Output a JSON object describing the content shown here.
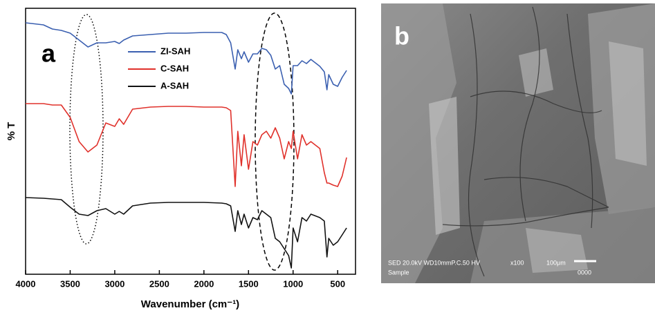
{
  "chart_data": {
    "type": "line",
    "panel_label": "a",
    "xlabel": "Wavenumber (cm⁻¹)",
    "ylabel": "% T",
    "x": [
      4000,
      3800,
      3700,
      3600,
      3500,
      3400,
      3300,
      3200,
      3100,
      3000,
      2950,
      2900,
      2800,
      2600,
      2400,
      2200,
      2000,
      1800,
      1750,
      1700,
      1650,
      1620,
      1580,
      1550,
      1500,
      1450,
      1400,
      1350,
      1300,
      1250,
      1200,
      1150,
      1100,
      1050,
      1020,
      1000,
      950,
      900,
      850,
      800,
      700,
      650,
      620,
      600,
      550,
      500,
      450,
      400
    ],
    "series": [
      {
        "name": "ZI-SAH",
        "color": "#3a5fb0",
        "values": [
          364,
          361,
          355,
          353,
          349,
          339,
          329,
          335,
          335,
          337,
          334,
          339,
          345,
          347,
          349,
          349,
          350,
          350,
          347,
          335,
          297,
          325,
          312,
          322,
          307,
          319,
          319,
          327,
          325,
          317,
          297,
          302,
          275,
          269,
          261,
          302,
          302,
          309,
          305,
          311,
          301,
          293,
          267,
          289,
          275,
          272,
          285,
          295
        ]
      },
      {
        "name": "C-SAH",
        "color": "#e0302a",
        "values": [
          247,
          247,
          245,
          245,
          227,
          192,
          177,
          187,
          219,
          214,
          225,
          217,
          239,
          242,
          243,
          243,
          242,
          242,
          241,
          237,
          127,
          207,
          157,
          202,
          152,
          192,
          187,
          202,
          207,
          197,
          212,
          197,
          167,
          192,
          182,
          207,
          167,
          202,
          187,
          192,
          182,
          147,
          132,
          132,
          129,
          127,
          142,
          169
        ]
      },
      {
        "name": "A-SAH",
        "color": "#111111",
        "values": [
          111,
          110,
          109,
          108,
          97,
          87,
          85,
          92,
          95,
          87,
          91,
          87,
          99,
          103,
          104,
          104,
          104,
          103,
          102,
          99,
          62,
          92,
          72,
          87,
          67,
          82,
          79,
          92,
          87,
          82,
          52,
          47,
          37,
          27,
          9,
          67,
          47,
          82,
          77,
          87,
          82,
          77,
          25,
          52,
          42,
          47,
          57,
          67
        ]
      }
    ],
    "xlim": [
      4000,
      300
    ],
    "ylim": [
      0,
      385
    ],
    "xticks": [
      4000,
      3500,
      3000,
      2500,
      2000,
      1500,
      1000,
      500
    ]
  },
  "image": {
    "label": "b",
    "info": "SED 20.0kV WD10mmP.C.50  HV",
    "magnification": "x100",
    "scale": "100μm",
    "sample": "Sample",
    "number": "0000"
  }
}
